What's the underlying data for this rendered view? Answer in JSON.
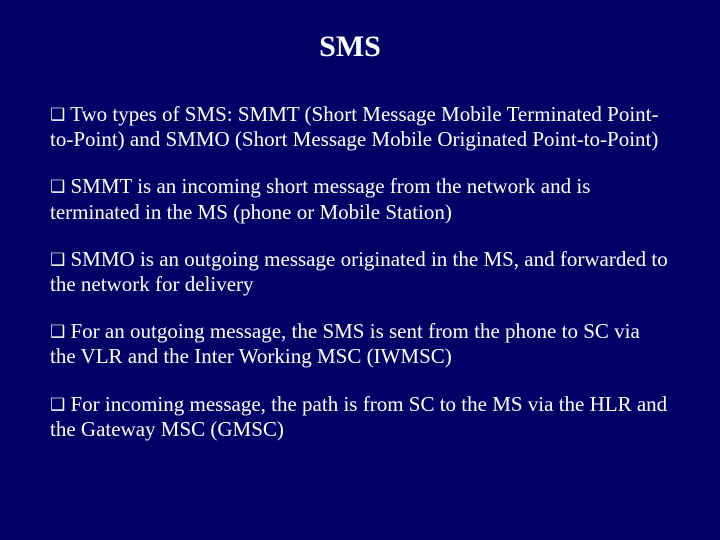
{
  "background_color": "#000066",
  "text_color": "#ffffff",
  "font_family": "Times New Roman",
  "title_fontsize": 30,
  "body_fontsize": 21,
  "bullet_glyph": "❑",
  "title": "SMS",
  "bullets": [
    "Two types of SMS: SMMT (Short Message Mobile Terminated Point-to-Point) and SMMO (Short Message Mobile Originated Point-to-Point)",
    "SMMT is an incoming short message from the network and is terminated in the MS (phone or Mobile Station)",
    "SMMO is an outgoing message originated in the MS, and forwarded to the network for delivery",
    "For an outgoing message, the SMS is sent from the phone to SC via the VLR and the Inter Working MSC (IWMSC)",
    "For incoming message, the path is from SC to the MS via the HLR and the Gateway MSC (GMSC)"
  ]
}
